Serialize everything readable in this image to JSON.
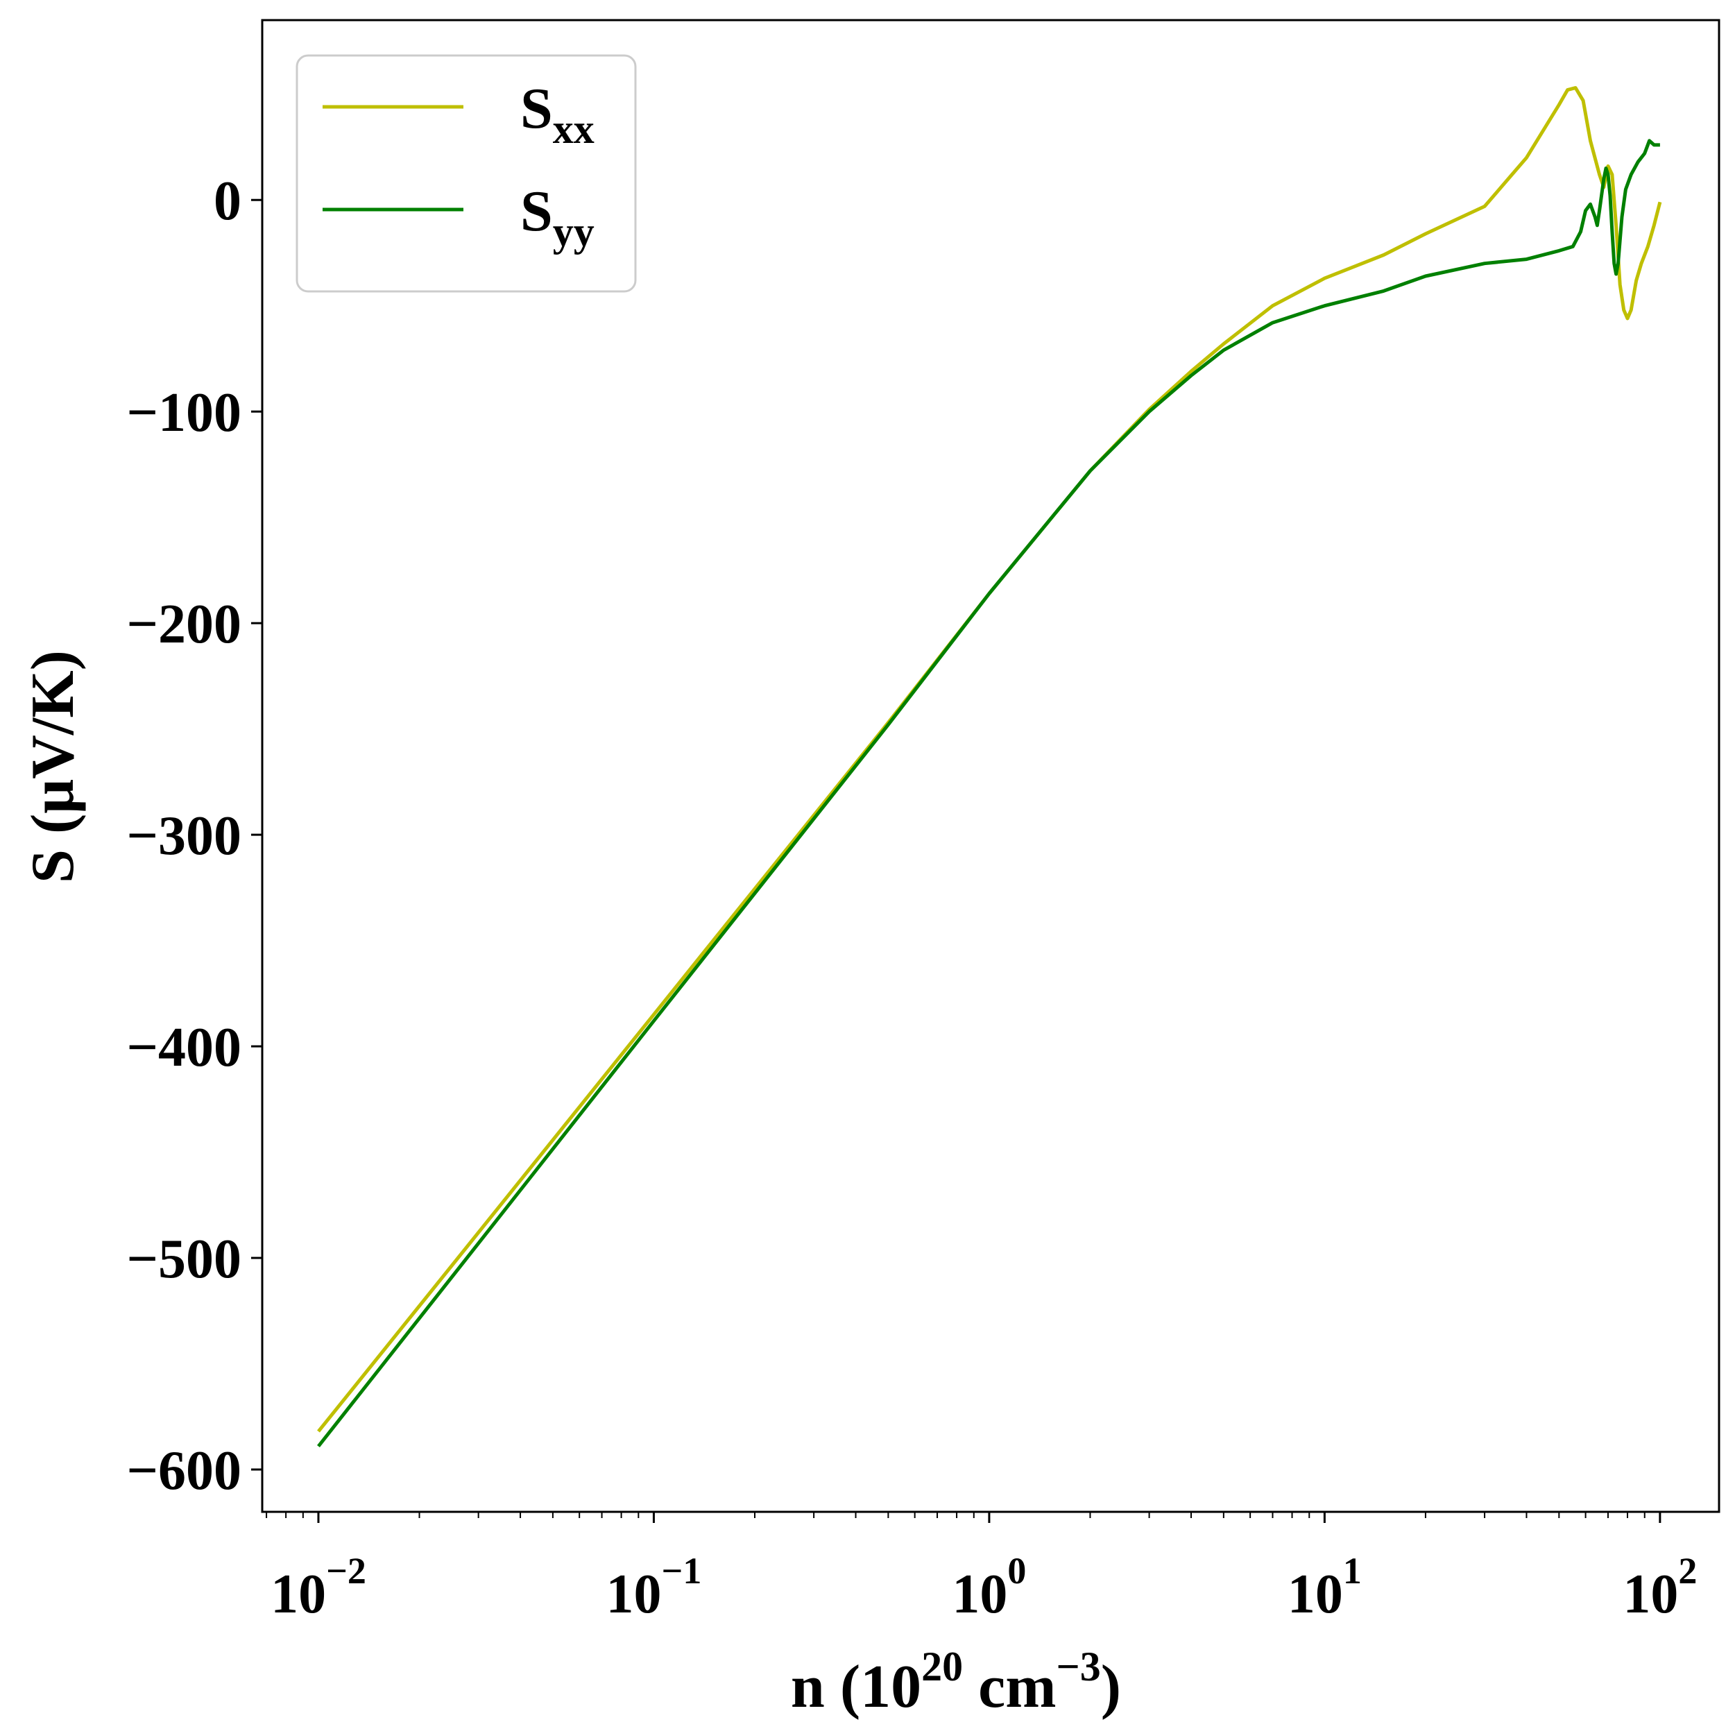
{
  "chart_data": {
    "type": "line",
    "xscale": "log",
    "xlim": [
      0.0068,
      150
    ],
    "ylim": [
      -620,
      85
    ],
    "xlabel": {
      "pre": "n (10",
      "sup1": "20",
      "mid": " cm",
      "sup2": "−3",
      "post": ")"
    },
    "ylabel": "S (μV/K)",
    "x_ticks": [
      {
        "value": 0.01,
        "base": "10",
        "exp": "−2"
      },
      {
        "value": 0.1,
        "base": "10",
        "exp": "−1"
      },
      {
        "value": 1,
        "base": "10",
        "exp": "0"
      },
      {
        "value": 10,
        "base": "10",
        "exp": "1"
      },
      {
        "value": 100,
        "base": "10",
        "exp": "2"
      }
    ],
    "y_ticks": [
      {
        "value": 0,
        "label": "0"
      },
      {
        "value": -100,
        "label": "−100"
      },
      {
        "value": -200,
        "label": "−200"
      },
      {
        "value": -300,
        "label": "−300"
      },
      {
        "value": -400,
        "label": "−400"
      },
      {
        "value": -500,
        "label": "−500"
      },
      {
        "value": -600,
        "label": "−600"
      }
    ],
    "grid": false,
    "legend_position": "top-left",
    "series": [
      {
        "name": "S",
        "sub": "xx",
        "color": "#bfbf00",
        "points": [
          [
            0.01,
            -582
          ],
          [
            0.1,
            -385
          ],
          [
            0.5,
            -247
          ],
          [
            1,
            -186
          ],
          [
            2,
            -128
          ],
          [
            3,
            -99
          ],
          [
            4,
            -81
          ],
          [
            5,
            -68
          ],
          [
            7,
            -50
          ],
          [
            10,
            -37
          ],
          [
            15,
            -26
          ],
          [
            20,
            -16
          ],
          [
            30,
            -3
          ],
          [
            40,
            20
          ],
          [
            50,
            45
          ],
          [
            53,
            52
          ],
          [
            56,
            53
          ],
          [
            59,
            47
          ],
          [
            62,
            28
          ],
          [
            66,
            12
          ],
          [
            68,
            6
          ],
          [
            70,
            16
          ],
          [
            72,
            12
          ],
          [
            74,
            -12
          ],
          [
            76,
            -40
          ],
          [
            78,
            -52
          ],
          [
            80,
            -56
          ],
          [
            82,
            -52
          ],
          [
            85,
            -38
          ],
          [
            88,
            -30
          ],
          [
            92,
            -22
          ],
          [
            96,
            -12
          ],
          [
            100,
            -1
          ]
        ]
      },
      {
        "name": "S",
        "sub": "yy",
        "color": "#008000",
        "points": [
          [
            0.01,
            -589
          ],
          [
            0.1,
            -388
          ],
          [
            0.5,
            -248
          ],
          [
            1,
            -186
          ],
          [
            2,
            -128
          ],
          [
            3,
            -100
          ],
          [
            4,
            -83
          ],
          [
            5,
            -71
          ],
          [
            7,
            -58
          ],
          [
            10,
            -50
          ],
          [
            15,
            -43
          ],
          [
            20,
            -36
          ],
          [
            30,
            -30
          ],
          [
            40,
            -28
          ],
          [
            50,
            -24
          ],
          [
            55,
            -22
          ],
          [
            58,
            -15
          ],
          [
            60,
            -5
          ],
          [
            62,
            -2
          ],
          [
            64,
            -8
          ],
          [
            65,
            -12
          ],
          [
            66,
            -5
          ],
          [
            68,
            10
          ],
          [
            69,
            15
          ],
          [
            70,
            12
          ],
          [
            71,
            2
          ],
          [
            72,
            -15
          ],
          [
            73,
            -30
          ],
          [
            74,
            -35
          ],
          [
            75,
            -30
          ],
          [
            77,
            -8
          ],
          [
            79,
            5
          ],
          [
            82,
            12
          ],
          [
            86,
            18
          ],
          [
            90,
            22
          ],
          [
            93,
            28
          ],
          [
            96,
            26
          ],
          [
            100,
            26
          ]
        ]
      }
    ]
  }
}
